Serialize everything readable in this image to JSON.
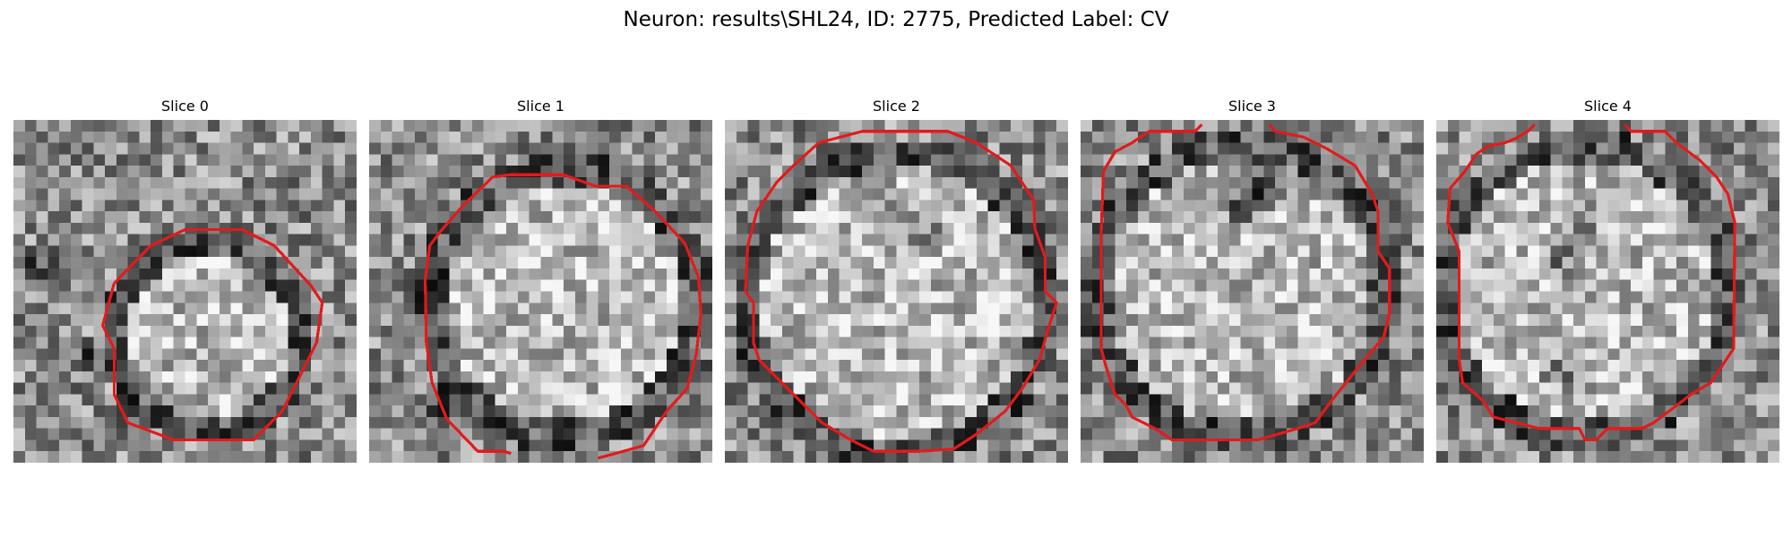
{
  "figure": {
    "title": "Neuron: results\\SHL24, ID: 2775, Predicted Label: CV"
  },
  "panels": [
    {
      "title": "Slice 0",
      "image": "grayscale-noisy-microscopy-patch",
      "contour_color": "#e31a1c"
    },
    {
      "title": "Slice 1",
      "image": "grayscale-noisy-microscopy-patch",
      "contour_color": "#e31a1c"
    },
    {
      "title": "Slice 2",
      "image": "grayscale-noisy-microscopy-patch",
      "contour_color": "#e31a1c"
    },
    {
      "title": "Slice 3",
      "image": "grayscale-noisy-microscopy-patch",
      "contour_color": "#e31a1c"
    },
    {
      "title": "Slice 4",
      "image": "grayscale-noisy-microscopy-patch",
      "contour_color": "#e31a1c"
    }
  ]
}
